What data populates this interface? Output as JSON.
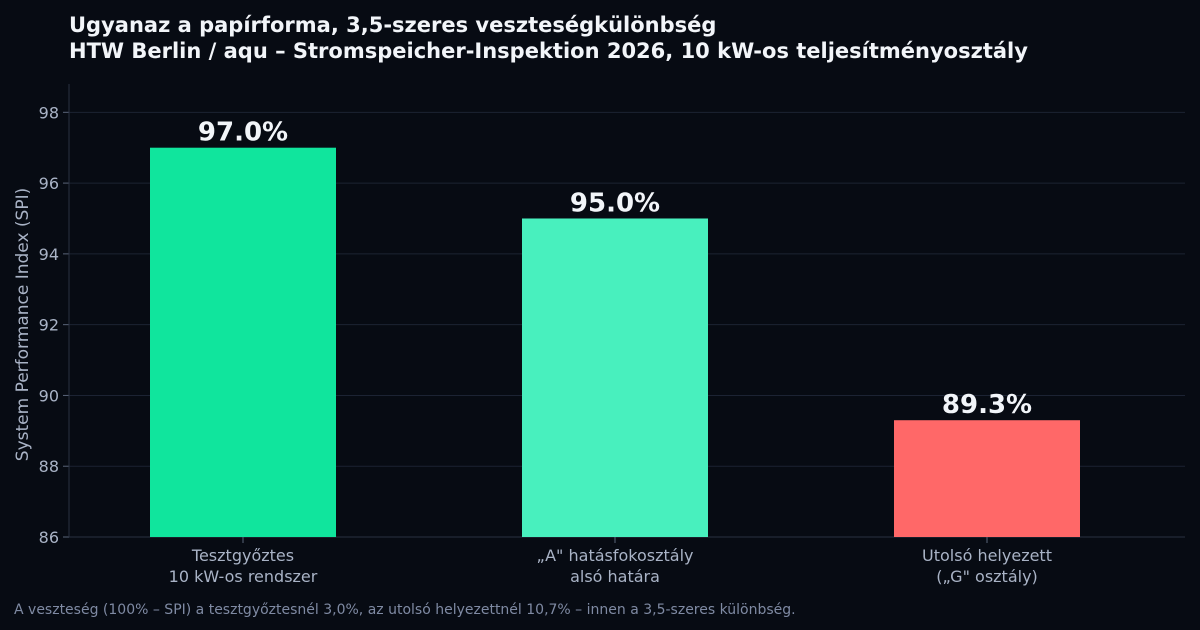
{
  "title_line1": "Ugyanaz a papírforma, 3,5-szeres veszteségkülönbség",
  "title_line2": "HTW Berlin / aqu – Stromspeicher-Inspektion 2026, 10 kW-os teljesítményosztály",
  "footnote": "A veszteség (100% – SPI) a tesztgyőztesnél 3,0%, az utolsó helyezettnél 10,7% – innen a 3,5-szeres különbség.",
  "chart_data": {
    "type": "bar",
    "categories": [
      [
        "Tesztgyőztes",
        "10 kW-os rendszer"
      ],
      [
        "„A\" hatásfokosztály",
        "alsó határa"
      ],
      [
        "Utolsó helyezett",
        "(„G\" osztály)"
      ]
    ],
    "values": [
      97.0,
      95.0,
      89.3
    ],
    "data_labels": [
      "97.0%",
      "95.0%",
      "89.3%"
    ],
    "colors": [
      "#10e59d",
      "#48f0be",
      "#ff6868"
    ],
    "ylabel": "System Performance Index (SPI)",
    "ylim": [
      86,
      98.8
    ],
    "yticks": [
      86,
      88,
      90,
      92,
      94,
      96,
      98
    ],
    "grid": true
  }
}
